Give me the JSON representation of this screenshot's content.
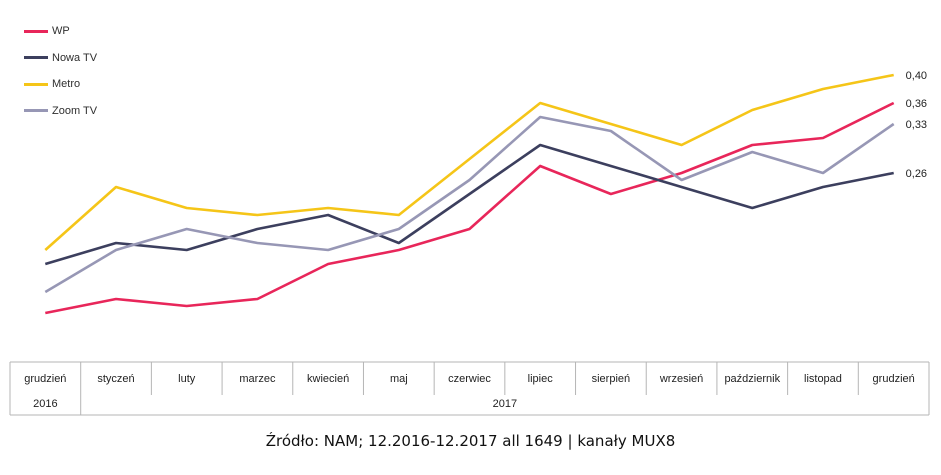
{
  "chart_data": {
    "type": "line",
    "categories": [
      "grudzień",
      "styczeń",
      "luty",
      "marzec",
      "kwiecień",
      "maj",
      "czerwiec",
      "lipiec",
      "sierpień",
      "wrzesień",
      "październik",
      "listopad",
      "grudzień"
    ],
    "year_groups": [
      {
        "label": "2016",
        "span": 1
      },
      {
        "label": "2017",
        "span": 12
      }
    ],
    "ylim": [
      0.0,
      0.45
    ],
    "grid": false,
    "legend_position": "top-left",
    "series": [
      {
        "name": "WP",
        "color": "#e8265a",
        "values": [
          0.06,
          0.08,
          0.07,
          0.08,
          0.13,
          0.15,
          0.18,
          0.27,
          0.23,
          0.26,
          0.3,
          0.31,
          0.36
        ],
        "end_label": "0,36"
      },
      {
        "name": "Nowa TV",
        "color": "#3c3f5e",
        "values": [
          0.13,
          0.16,
          0.15,
          0.18,
          0.2,
          0.16,
          0.23,
          0.3,
          0.27,
          0.24,
          0.21,
          0.24,
          0.26
        ],
        "end_label": "0,26"
      },
      {
        "name": "Metro",
        "color": "#f5c518",
        "values": [
          0.15,
          0.24,
          0.21,
          0.2,
          0.21,
          0.2,
          0.28,
          0.36,
          0.33,
          0.3,
          0.35,
          0.38,
          0.4
        ],
        "end_label": "0,40"
      },
      {
        "name": "Zoom TV",
        "color": "#9797b5",
        "values": [
          0.09,
          0.15,
          0.18,
          0.16,
          0.15,
          0.18,
          0.25,
          0.34,
          0.32,
          0.25,
          0.29,
          0.26,
          0.33
        ],
        "end_label": "0,33"
      }
    ]
  },
  "source_text": "Źródło: NAM; 12.2016-12.2017 all 1649 | kanały MUX8"
}
